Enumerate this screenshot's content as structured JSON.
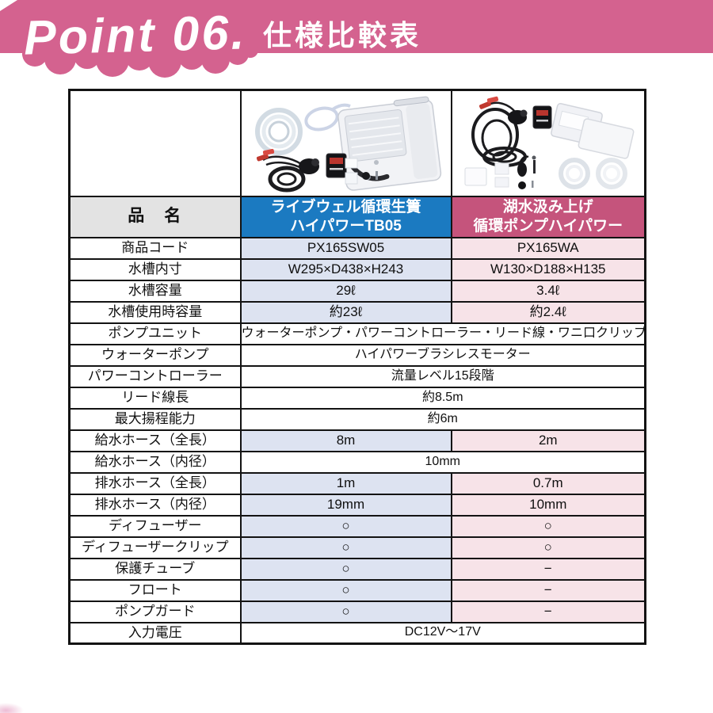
{
  "banner": {
    "point_label": "Point 06.",
    "title": "仕様比較表",
    "bg_color": "#d4628f"
  },
  "table": {
    "name_header": "品　名",
    "products": [
      {
        "name_line1": "ライブウェル循環生簀",
        "name_line2": "ハイパワーTB05",
        "header_color": "#1b7ac1",
        "cell_color": "#dde3f1",
        "image": "livewell-tank-kit"
      },
      {
        "name_line1": "湖水汲み上げ",
        "name_line2": "循環ポンプハイパワー",
        "header_color": "#c5547c",
        "cell_color": "#f7e3e8",
        "image": "lake-pump-kit"
      }
    ],
    "rows": [
      {
        "label": "商品コード",
        "type": "split",
        "a": "PX165SW05",
        "b": "PX165WA"
      },
      {
        "label": "水槽内寸",
        "type": "split",
        "a": "W295×D438×H243",
        "b": "W130×D188×H135"
      },
      {
        "label": "水槽容量",
        "type": "split",
        "a": "29ℓ",
        "b": "3.4ℓ"
      },
      {
        "label": "水槽使用時容量",
        "type": "split",
        "a": "約23ℓ",
        "b": "約2.4ℓ"
      },
      {
        "label": "ポンプユニット",
        "type": "span",
        "value": "ウォーターポンプ・パワーコントローラー・リード線・ワニ口クリップ"
      },
      {
        "label": "ウォーターポンプ",
        "type": "span",
        "value": "ハイパワーブラシレスモーター"
      },
      {
        "label": "パワーコントローラー",
        "type": "span",
        "value": "流量レベル15段階"
      },
      {
        "label": "リード線長",
        "type": "span",
        "value": "約8.5m"
      },
      {
        "label": "最大揚程能力",
        "type": "span",
        "value": "約6m"
      },
      {
        "label": "給水ホース（全長）",
        "type": "split",
        "a": "8m",
        "b": "2m"
      },
      {
        "label": "給水ホース（内径）",
        "type": "span",
        "value": "10mm"
      },
      {
        "label": "排水ホース（全長）",
        "type": "split",
        "a": "1m",
        "b": "0.7m"
      },
      {
        "label": "排水ホース（内径）",
        "type": "split",
        "a": "19mm",
        "b": "10mm"
      },
      {
        "label": "ディフューザー",
        "type": "split",
        "a": "○",
        "b": "○"
      },
      {
        "label": "ディフューザークリップ",
        "type": "split",
        "a": "○",
        "b": "○"
      },
      {
        "label": "保護チューブ",
        "type": "split",
        "a": "○",
        "b": "−"
      },
      {
        "label": "フロート",
        "type": "split",
        "a": "○",
        "b": "−"
      },
      {
        "label": "ポンプガード",
        "type": "split",
        "a": "○",
        "b": "−"
      },
      {
        "label": "入力電圧",
        "type": "span",
        "value": "DC12V～17V"
      }
    ]
  }
}
